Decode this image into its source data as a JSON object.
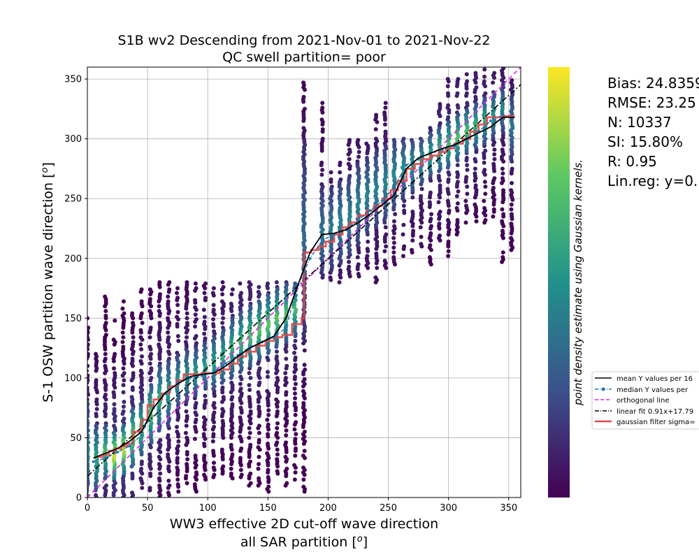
{
  "chart_data": {
    "type": "scatter",
    "title_line1": "S1B wv2 Descending from 2021-Nov-01 to 2021-Nov-22",
    "title_line2": "QC swell partition= poor",
    "xlabel_line1": "WW3 effective 2D cut-off wave direction",
    "xlabel_line2": "all SAR partition [",
    "ylabel_main": "S-1 OSW partition wave direction [",
    "label_unit": "o",
    "label_close": "]",
    "xlim": [
      0,
      360
    ],
    "ylim": [
      0,
      360
    ],
    "xticks": [
      0,
      50,
      100,
      150,
      200,
      250,
      300,
      350
    ],
    "yticks": [
      0,
      50,
      100,
      150,
      200,
      250,
      300,
      350
    ],
    "grid": true,
    "colorbar_label": "point density estimate using Gaussian kernels.",
    "colormap": [
      "#440154",
      "#3b528b",
      "#21918c",
      "#5ec962",
      "#fde725"
    ],
    "stats": {
      "bias": "Bias: 24.8359",
      "rmse": "RMSE: 23.25",
      "n": "N: 10337",
      "si": "SI: 15.80%",
      "r": "R: 0.95",
      "linreg": "Lin.reg: y=0."
    },
    "legend_placement": "right of colorbar",
    "legend": [
      {
        "label": "mean Y values per 16",
        "color": "#000000",
        "style": "solid"
      },
      {
        "label": "median Y values per",
        "color": "#1f77b4",
        "style": "dashdot-marker"
      },
      {
        "label": "orthogonal line",
        "color": "#e81ee8",
        "style": "dashed"
      },
      {
        "label": "linear fit 0.91x+17.79",
        "color": "#000000",
        "style": "dashdot"
      },
      {
        "label": "gaussian filter sigma=",
        "color": "#e0484b",
        "style": "thick"
      }
    ],
    "orthogonal_line": {
      "slope": 1,
      "intercept": 0,
      "color": "#e81ee8"
    },
    "linear_fit": {
      "slope": 0.91,
      "intercept": 17.79,
      "color": "#000000"
    },
    "mean_curve": {
      "color": "#000000",
      "x": [
        5,
        15,
        25,
        35,
        45,
        55,
        65,
        75,
        85,
        95,
        105,
        115,
        125,
        135,
        145,
        155,
        165,
        175,
        185,
        195,
        205,
        215,
        225,
        235,
        245,
        255,
        265,
        275,
        285,
        295,
        305,
        315,
        325,
        335,
        345,
        355
      ],
      "y": [
        33,
        37,
        41,
        47,
        55,
        75,
        88,
        95,
        101,
        103,
        104,
        110,
        118,
        125,
        130,
        135,
        150,
        178,
        205,
        220,
        221,
        224,
        230,
        237,
        245,
        253,
        275,
        284,
        288,
        292,
        295,
        300,
        305,
        310,
        318,
        318
      ]
    },
    "median_curve": {
      "color": "#1f77b4",
      "x": [
        5,
        15,
        25,
        35,
        45,
        55,
        65,
        75,
        85,
        95,
        105,
        115,
        125,
        135,
        145,
        155,
        165,
        175,
        185,
        195,
        205,
        215,
        225,
        235,
        245,
        255,
        265,
        275,
        285,
        295,
        305,
        315,
        325,
        335,
        345
      ],
      "y": [
        30,
        33,
        38,
        43,
        52,
        75,
        87,
        96,
        100,
        102,
        105,
        112,
        119,
        126,
        130,
        134,
        142,
        178,
        200,
        215,
        220,
        224,
        232,
        240,
        248,
        260,
        278,
        283,
        288,
        291,
        294,
        300,
        306,
        315,
        320
      ]
    },
    "gaussian_curve": {
      "color": "#e0484b",
      "x": [
        8,
        13,
        18,
        23,
        28,
        33,
        38,
        45,
        50,
        55,
        62,
        68,
        74,
        80,
        88,
        95,
        102,
        110,
        118,
        125,
        132,
        140,
        148,
        155,
        162,
        170,
        178,
        180,
        186,
        192,
        198,
        205,
        212,
        218,
        225,
        232,
        238,
        245,
        252,
        258,
        265,
        272,
        278,
        285,
        292,
        298,
        305,
        312,
        318,
        325,
        332,
        338,
        345,
        355
      ],
      "y": [
        34,
        36,
        39,
        41,
        43,
        45,
        55,
        65,
        77,
        82,
        87,
        93,
        98,
        103,
        103,
        104,
        104,
        107,
        112,
        118,
        122,
        127,
        131,
        134,
        136,
        145,
        150,
        205,
        207,
        210,
        214,
        220,
        226,
        230,
        236,
        240,
        244,
        250,
        257,
        265,
        275,
        279,
        283,
        286,
        289,
        292,
        296,
        300,
        306,
        312,
        318,
        318,
        319,
        319
      ]
    },
    "scatter_columns": [
      {
        "x": 0,
        "ymin": 0,
        "ymax": 150,
        "core_min": 0,
        "core_max": 80,
        "d": 0.45
      },
      {
        "x": 7.5,
        "ymin": 0,
        "ymax": 120,
        "core_min": 5,
        "core_max": 60,
        "d": 0.6
      },
      {
        "x": 15,
        "ymin": 0,
        "ymax": 170,
        "core_min": 15,
        "core_max": 60,
        "d": 0.7
      },
      {
        "x": 22.5,
        "ymin": 0,
        "ymax": 150,
        "core_min": 15,
        "core_max": 55,
        "d": 0.95
      },
      {
        "x": 30,
        "ymin": 0,
        "ymax": 165,
        "core_min": 20,
        "core_max": 60,
        "d": 0.92
      },
      {
        "x": 37.5,
        "ymin": 0,
        "ymax": 155,
        "core_min": 25,
        "core_max": 75,
        "d": 0.78
      },
      {
        "x": 45,
        "ymin": 0,
        "ymax": 175,
        "core_min": 35,
        "core_max": 80,
        "d": 0.7
      },
      {
        "x": 52.5,
        "ymin": 0,
        "ymax": 175,
        "core_min": 45,
        "core_max": 95,
        "d": 0.7
      },
      {
        "x": 60,
        "ymin": 0,
        "ymax": 180,
        "core_min": 55,
        "core_max": 110,
        "d": 0.62
      },
      {
        "x": 67.5,
        "ymin": 0,
        "ymax": 180,
        "core_min": 60,
        "core_max": 115,
        "d": 0.55
      },
      {
        "x": 75,
        "ymin": 5,
        "ymax": 180,
        "core_min": 75,
        "core_max": 120,
        "d": 0.52
      },
      {
        "x": 82.5,
        "ymin": 10,
        "ymax": 180,
        "core_min": 80,
        "core_max": 125,
        "d": 0.5
      },
      {
        "x": 90,
        "ymin": 5,
        "ymax": 180,
        "core_min": 85,
        "core_max": 125,
        "d": 0.55
      },
      {
        "x": 97.5,
        "ymin": 15,
        "ymax": 180,
        "core_min": 90,
        "core_max": 130,
        "d": 0.55
      },
      {
        "x": 105,
        "ymin": 15,
        "ymax": 175,
        "core_min": 90,
        "core_max": 135,
        "d": 0.58
      },
      {
        "x": 112.5,
        "ymin": 20,
        "ymax": 180,
        "core_min": 95,
        "core_max": 140,
        "d": 0.6
      },
      {
        "x": 120,
        "ymin": 10,
        "ymax": 180,
        "core_min": 100,
        "core_max": 150,
        "d": 0.62
      },
      {
        "x": 127.5,
        "ymin": 15,
        "ymax": 180,
        "core_min": 105,
        "core_max": 155,
        "d": 0.66
      },
      {
        "x": 135,
        "ymin": 10,
        "ymax": 180,
        "core_min": 110,
        "core_max": 160,
        "d": 0.7
      },
      {
        "x": 142.5,
        "ymin": 10,
        "ymax": 180,
        "core_min": 115,
        "core_max": 165,
        "d": 0.72
      },
      {
        "x": 150,
        "ymin": 5,
        "ymax": 180,
        "core_min": 120,
        "core_max": 170,
        "d": 0.74
      },
      {
        "x": 157.5,
        "ymin": 20,
        "ymax": 180,
        "core_min": 125,
        "core_max": 175,
        "d": 0.72
      },
      {
        "x": 165,
        "ymin": 10,
        "ymax": 180,
        "core_min": 130,
        "core_max": 178,
        "d": 0.7
      },
      {
        "x": 172.5,
        "ymin": 15,
        "ymax": 180,
        "core_min": 135,
        "core_max": 180,
        "d": 0.68
      },
      {
        "x": 180,
        "ymin": 5,
        "ymax": 350,
        "core_min": 130,
        "core_max": 300,
        "d": 0.35
      },
      {
        "x": 195,
        "ymin": 180,
        "ymax": 330,
        "core_min": 185,
        "core_max": 260,
        "d": 0.4
      },
      {
        "x": 202.5,
        "ymin": 180,
        "ymax": 275,
        "core_min": 190,
        "core_max": 260,
        "d": 0.42
      },
      {
        "x": 210,
        "ymin": 180,
        "ymax": 280,
        "core_min": 195,
        "core_max": 265,
        "d": 0.45
      },
      {
        "x": 217.5,
        "ymin": 185,
        "ymax": 300,
        "core_min": 200,
        "core_max": 270,
        "d": 0.45
      },
      {
        "x": 225,
        "ymin": 185,
        "ymax": 300,
        "core_min": 210,
        "core_max": 280,
        "d": 0.45
      },
      {
        "x": 232.5,
        "ymin": 190,
        "ymax": 300,
        "core_min": 220,
        "core_max": 285,
        "d": 0.46
      },
      {
        "x": 240,
        "ymin": 180,
        "ymax": 320,
        "core_min": 225,
        "core_max": 290,
        "d": 0.46
      },
      {
        "x": 247.5,
        "ymin": 190,
        "ymax": 330,
        "core_min": 230,
        "core_max": 295,
        "d": 0.46
      },
      {
        "x": 255,
        "ymin": 195,
        "ymax": 300,
        "core_min": 240,
        "core_max": 300,
        "d": 0.48
      },
      {
        "x": 262.5,
        "ymin": 200,
        "ymax": 300,
        "core_min": 250,
        "core_max": 300,
        "d": 0.5
      },
      {
        "x": 270,
        "ymin": 205,
        "ymax": 300,
        "core_min": 255,
        "core_max": 300,
        "d": 0.52
      },
      {
        "x": 277.5,
        "ymin": 210,
        "ymax": 300,
        "core_min": 262,
        "core_max": 300,
        "d": 0.56
      },
      {
        "x": 285,
        "ymin": 195,
        "ymax": 320,
        "core_min": 268,
        "core_max": 305,
        "d": 0.6
      },
      {
        "x": 292.5,
        "ymin": 215,
        "ymax": 330,
        "core_min": 272,
        "core_max": 310,
        "d": 0.64
      },
      {
        "x": 300,
        "ymin": 200,
        "ymax": 350,
        "core_min": 276,
        "core_max": 315,
        "d": 0.68
      },
      {
        "x": 307.5,
        "ymin": 220,
        "ymax": 350,
        "core_min": 282,
        "core_max": 320,
        "d": 0.72
      },
      {
        "x": 315,
        "ymin": 230,
        "ymax": 355,
        "core_min": 288,
        "core_max": 325,
        "d": 0.7
      },
      {
        "x": 322.5,
        "ymin": 225,
        "ymax": 355,
        "core_min": 292,
        "core_max": 330,
        "d": 0.64
      },
      {
        "x": 330,
        "ymin": 230,
        "ymax": 360,
        "core_min": 296,
        "core_max": 335,
        "d": 0.6
      },
      {
        "x": 337.5,
        "ymin": 235,
        "ymax": 360,
        "core_min": 300,
        "core_max": 340,
        "d": 0.52
      },
      {
        "x": 345,
        "ymin": 195,
        "ymax": 360,
        "core_min": 305,
        "core_max": 345,
        "d": 0.45
      },
      {
        "x": 352.5,
        "ymin": 205,
        "ymax": 350,
        "core_min": 280,
        "core_max": 340,
        "d": 0.4
      }
    ]
  }
}
